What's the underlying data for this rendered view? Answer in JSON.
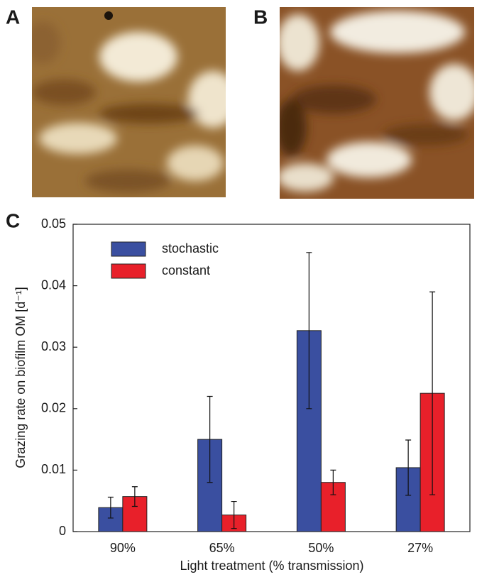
{
  "panel_labels": [
    "A",
    "B",
    "C"
  ],
  "chart_data": {
    "type": "bar",
    "x_label": "Light treatment (% transmission)",
    "y_label": "Grazing rate on biofilm OM [d⁻¹]",
    "categories": [
      "90%",
      "65%",
      "50%",
      "27%"
    ],
    "series": [
      {
        "name": "stochastic",
        "color": "#3a4fa0",
        "values": [
          0.0039,
          0.015,
          0.0327,
          0.0104
        ],
        "errors": [
          0.0017,
          0.007,
          0.0127,
          0.0045
        ]
      },
      {
        "name": "constant",
        "color": "#e8202a",
        "values": [
          0.0057,
          0.0027,
          0.008,
          0.0225
        ],
        "errors": [
          0.0016,
          0.0022,
          0.002,
          0.0165
        ]
      }
    ],
    "ylim": [
      0,
      0.05
    ],
    "yticks": [
      0,
      0.01,
      0.02,
      0.03,
      0.04,
      0.05
    ],
    "legend": "upper left"
  }
}
